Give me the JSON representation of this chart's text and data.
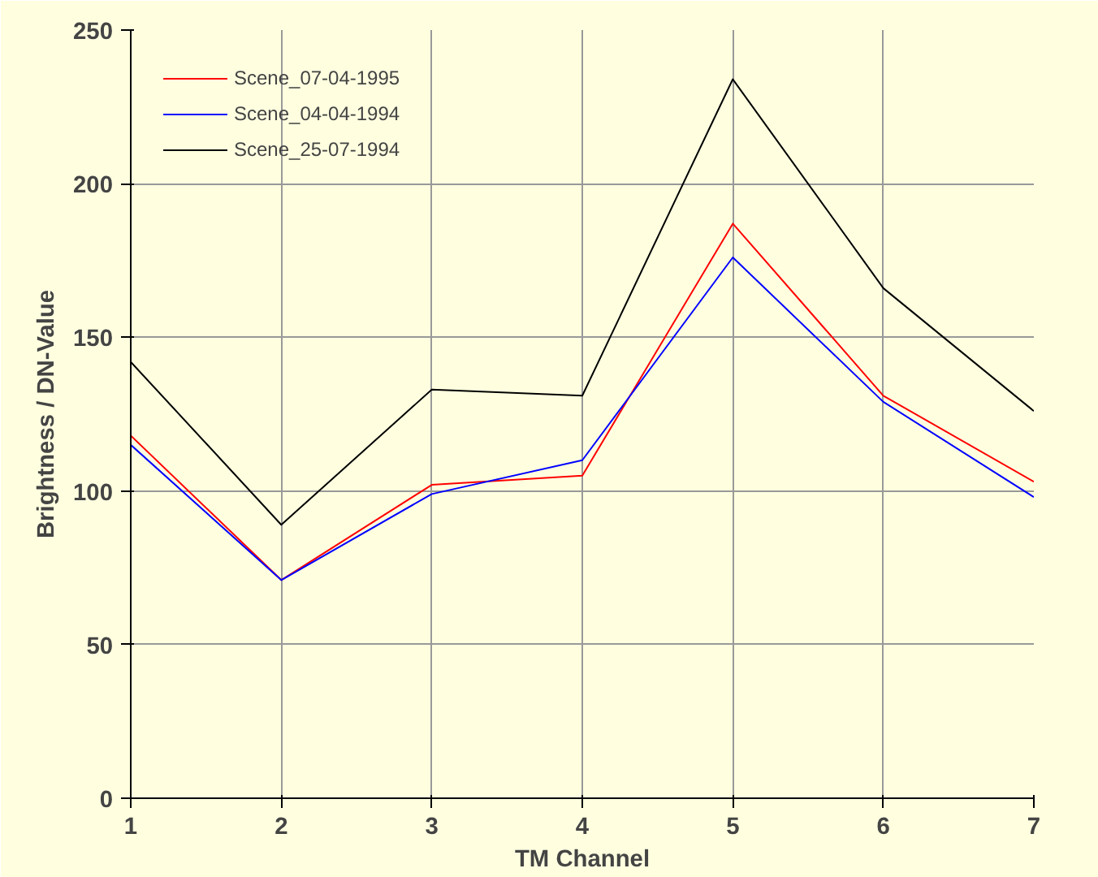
{
  "chart_data": {
    "type": "line",
    "xlabel": "TM Channel",
    "ylabel": "Brightness / DN-Value",
    "x": [
      1,
      2,
      3,
      4,
      5,
      6,
      7
    ],
    "series": [
      {
        "name": "Scene_07-04-1995",
        "color": "#ff0000",
        "values": [
          118,
          71,
          102,
          105,
          187,
          131,
          103
        ]
      },
      {
        "name": "Scene_04-04-1994",
        "color": "#0000ff",
        "values": [
          115,
          71,
          99,
          110,
          176,
          129,
          98
        ]
      },
      {
        "name": "Scene_25-07-1994",
        "color": "#000000",
        "values": [
          142,
          89,
          133,
          131,
          234,
          166,
          126
        ]
      }
    ],
    "xlim": [
      1,
      7
    ],
    "xticks": [
      1,
      2,
      3,
      4,
      5,
      6,
      7
    ],
    "ylim": [
      0,
      250
    ],
    "yticks": [
      0,
      50,
      100,
      150,
      200,
      250
    ],
    "grid": true,
    "legend": "top left",
    "marker": "none",
    "line_style": "solid"
  }
}
